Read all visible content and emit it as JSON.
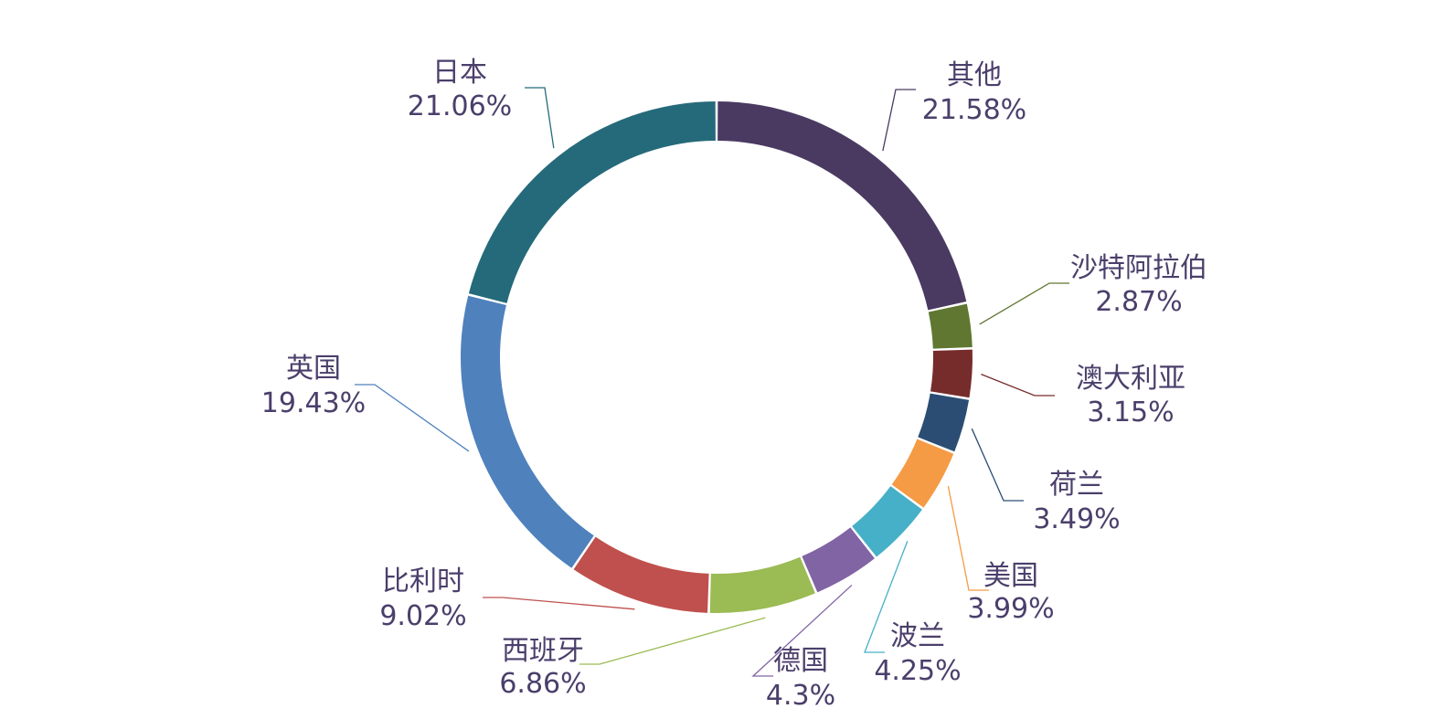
{
  "chart_data": {
    "type": "pie",
    "variant": "donut",
    "title": "",
    "legend": "none",
    "slices": [
      {
        "name": "其他",
        "value": 21.58,
        "label": "21.58%",
        "color": "#4a3a62"
      },
      {
        "name": "沙特阿拉伯",
        "value": 2.87,
        "label": "2.87%",
        "color": "#5f7731"
      },
      {
        "name": "澳大利亚",
        "value": 3.15,
        "label": "3.15%",
        "color": "#762c2b"
      },
      {
        "name": "荷兰",
        "value": 3.49,
        "label": "3.49%",
        "color": "#2b4d73"
      },
      {
        "name": "美国",
        "value": 3.99,
        "label": "3.99%",
        "color": "#f59b45"
      },
      {
        "name": "波兰",
        "value": 4.25,
        "label": "4.25%",
        "color": "#46b0c8"
      },
      {
        "name": "德国",
        "value": 4.3,
        "label": "4.3%",
        "color": "#8164a4"
      },
      {
        "name": "西班牙",
        "value": 6.86,
        "label": "6.86%",
        "color": "#9bbb54"
      },
      {
        "name": "比利时",
        "value": 9.02,
        "label": "9.02%",
        "color": "#c0504d"
      },
      {
        "name": "英国",
        "value": 19.43,
        "label": "19.43%",
        "color": "#4f81bd"
      },
      {
        "name": "日本",
        "value": 21.06,
        "label": "21.06%",
        "color": "#256a7a"
      }
    ]
  }
}
